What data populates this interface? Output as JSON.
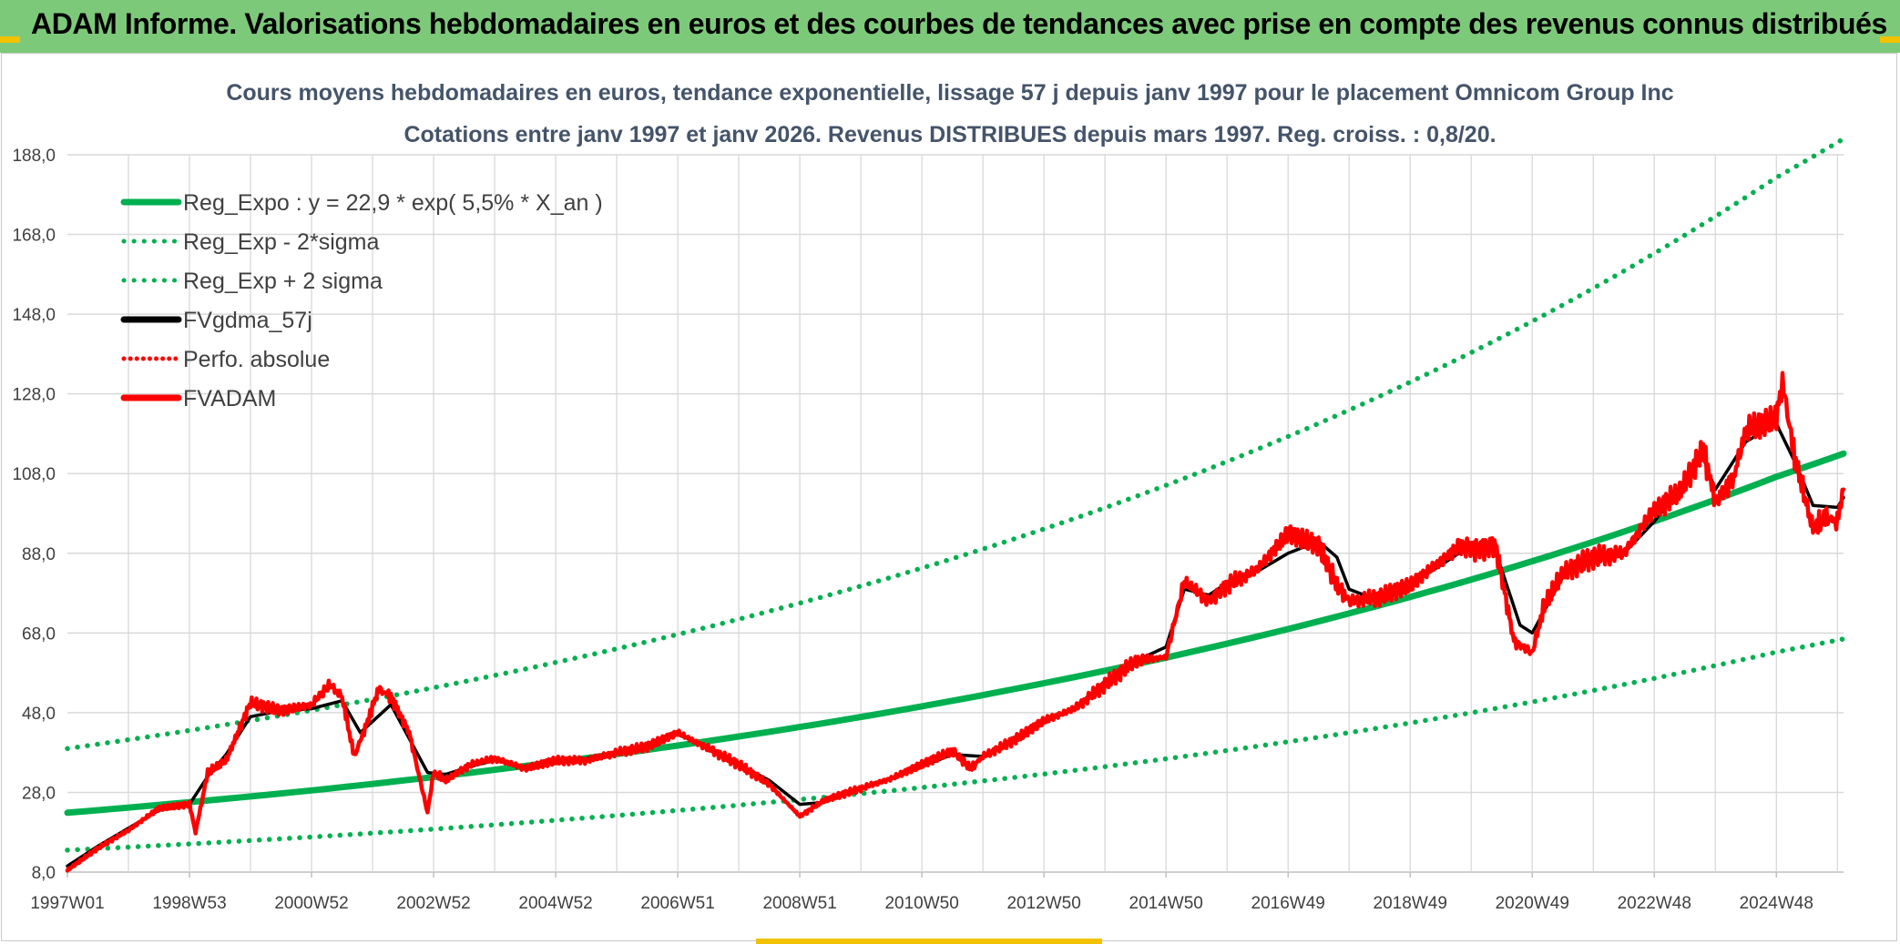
{
  "banner": {
    "title": "ADAM Informe. Valorisations hebdomadaires en euros et des courbes de tendances avec prise en compte des revenus connus distribués"
  },
  "colors": {
    "banner_bg": "#7dc97a",
    "accent_yellow": "#f2c200",
    "green": "#00b050",
    "red": "#ff0000",
    "black": "#000000",
    "title_text": "#44546a",
    "grid": "#d9d9d9"
  },
  "chart_data": {
    "type": "line",
    "title": "Cours moyens hebdomadaires en euros, tendance exponentielle, lissage 57 j depuis janv 1997 pour le placement Omnicom Group Inc",
    "subtitle": "Cotations entre janv 1997 et janv 2026. Revenus DISTRIBUES depuis mars 1997. Reg. croiss. : 0,8/20.",
    "xlabel": "",
    "ylabel": "",
    "x_range": [
      1997.0,
      2026.1
    ],
    "ylim": [
      8.0,
      188.0
    ],
    "y_ticks": [
      "8,0",
      "28,0",
      "48,0",
      "68,0",
      "88,0",
      "108,0",
      "128,0",
      "148,0",
      "168,0",
      "188,0"
    ],
    "x_ticks": [
      {
        "label": "1997W01",
        "x": 1997.0
      },
      {
        "label": "1998W53",
        "x": 1999.0
      },
      {
        "label": "2000W52",
        "x": 2001.0
      },
      {
        "label": "2002W52",
        "x": 2003.0
      },
      {
        "label": "2004W52",
        "x": 2005.0
      },
      {
        "label": "2006W51",
        "x": 2007.0
      },
      {
        "label": "2008W51",
        "x": 2009.0
      },
      {
        "label": "2010W50",
        "x": 2011.0
      },
      {
        "label": "2012W50",
        "x": 2013.0
      },
      {
        "label": "2014W50",
        "x": 2015.0
      },
      {
        "label": "2016W49",
        "x": 2017.0
      },
      {
        "label": "2018W49",
        "x": 2019.0
      },
      {
        "label": "2020W49",
        "x": 2021.0
      },
      {
        "label": "2022W48",
        "x": 2023.0
      },
      {
        "label": "2024W48",
        "x": 2025.0
      }
    ],
    "legend": [
      "Reg_Expo : y = 22,9 * exp( 5,5% *  X_an )",
      "Reg_Exp - 2*sigma",
      "Reg_Exp + 2 sigma",
      "FVgdma_57j",
      "Perfo. absolue",
      "FVADAM"
    ],
    "series": [
      {
        "name": "Reg_Expo : y = 22,9 * exp( 5,5% *  X_an )",
        "style": "green-solid",
        "x": [
          1997.0,
          2001.0,
          2005.0,
          2009.0,
          2013.0,
          2017.0,
          2021.0,
          2025.0,
          2026.1
        ],
        "y": [
          22.9,
          28.5,
          35.6,
          44.4,
          55.4,
          69.0,
          86.0,
          107.2,
          113.0
        ]
      },
      {
        "name": "Reg_Exp - 2*sigma",
        "style": "green-dotted",
        "x": [
          1997.0,
          2001.0,
          2005.0,
          2009.0,
          2013.0,
          2017.0,
          2021.0,
          2025.0,
          2026.1
        ],
        "y": [
          13.5,
          16.8,
          21.0,
          26.2,
          32.6,
          40.7,
          50.7,
          63.2,
          66.5
        ]
      },
      {
        "name": "Reg_Exp + 2 sigma",
        "style": "green-dotted",
        "x": [
          1997.0,
          2001.0,
          2005.0,
          2009.0,
          2013.0,
          2017.0,
          2021.0,
          2025.0,
          2026.1
        ],
        "y": [
          39.0,
          48.6,
          60.6,
          75.5,
          94.1,
          117.3,
          146.2,
          182.3,
          192.0
        ]
      },
      {
        "name": "FVgdma_57j",
        "style": "black-solid",
        "x": [
          1997.0,
          1997.5,
          1998.0,
          1998.5,
          1999.0,
          1999.3,
          1999.6,
          2000.0,
          2000.5,
          2001.0,
          2001.5,
          2001.8,
          2002.3,
          2002.9,
          2003.2,
          2003.6,
          2004.0,
          2004.5,
          2005.0,
          2005.5,
          2006.0,
          2006.5,
          2007.0,
          2007.5,
          2008.0,
          2008.5,
          2009.0,
          2009.4,
          2010.0,
          2010.5,
          2011.0,
          2011.5,
          2012.0,
          2012.5,
          2013.0,
          2013.5,
          2014.0,
          2014.5,
          2015.0,
          2015.3,
          2015.7,
          2016.0,
          2016.5,
          2017.0,
          2017.5,
          2017.8,
          2018.0,
          2018.5,
          2019.0,
          2019.5,
          2019.8,
          2020.1,
          2020.4,
          2020.8,
          2021.0,
          2021.5,
          2022.0,
          2022.5,
          2023.0,
          2023.4,
          2023.8,
          2024.0,
          2024.5,
          2025.0,
          2025.3,
          2025.6,
          2026.0,
          2026.1
        ],
        "y": [
          9.5,
          14.5,
          19.0,
          23.5,
          25.0,
          32.0,
          37.5,
          47.0,
          48.5,
          49.0,
          51.0,
          43.0,
          50.0,
          33.0,
          32.5,
          34.5,
          36.0,
          34.5,
          36.0,
          36.5,
          38.0,
          40.0,
          42.5,
          39.5,
          35.0,
          31.0,
          25.0,
          25.5,
          29.0,
          31.5,
          34.5,
          37.5,
          37.0,
          41.0,
          45.5,
          49.0,
          56.0,
          61.0,
          64.5,
          79.0,
          77.5,
          80.5,
          83.5,
          88.0,
          91.0,
          87.0,
          79.0,
          76.0,
          80.0,
          85.0,
          88.0,
          89.5,
          88.5,
          70.0,
          68.0,
          82.0,
          87.5,
          88.0,
          96.0,
          104.0,
          112.0,
          104.0,
          116.0,
          120.5,
          111.0,
          100.0,
          99.5,
          102.0
        ]
      },
      {
        "name": "Perfo. absolue",
        "style": "red-dotted",
        "x": [],
        "y": []
      },
      {
        "name": "FVADAM",
        "style": "red-solid",
        "x": [
          1997.0,
          1997.5,
          1998.0,
          1998.5,
          1999.0,
          1999.1,
          1999.3,
          1999.6,
          2000.0,
          2000.5,
          2001.0,
          2001.3,
          2001.5,
          2001.7,
          2001.9,
          2002.1,
          2002.3,
          2002.6,
          2002.9,
          2003.0,
          2003.2,
          2003.6,
          2004.0,
          2004.5,
          2005.0,
          2005.5,
          2006.0,
          2006.5,
          2007.0,
          2007.5,
          2008.0,
          2008.5,
          2009.0,
          2009.4,
          2010.0,
          2010.5,
          2011.0,
          2011.5,
          2011.8,
          2012.0,
          2012.5,
          2013.0,
          2013.5,
          2014.0,
          2014.5,
          2015.0,
          2015.3,
          2015.7,
          2016.0,
          2016.5,
          2017.0,
          2017.5,
          2017.8,
          2018.0,
          2018.5,
          2019.0,
          2019.5,
          2019.8,
          2020.1,
          2020.4,
          2020.7,
          2021.0,
          2021.2,
          2021.5,
          2022.0,
          2022.5,
          2023.0,
          2023.4,
          2023.8,
          2024.0,
          2024.3,
          2024.5,
          2025.0,
          2025.1,
          2025.3,
          2025.6,
          2025.8,
          2026.0,
          2026.1
        ],
        "y": [
          8.5,
          14.0,
          18.5,
          24.0,
          25.0,
          18.0,
          33.0,
          36.0,
          50.5,
          48.5,
          50.0,
          55.0,
          52.0,
          37.0,
          45.0,
          54.0,
          52.0,
          43.0,
          23.0,
          33.0,
          31.0,
          35.0,
          36.5,
          34.0,
          36.0,
          36.0,
          38.0,
          39.5,
          43.0,
          39.0,
          35.0,
          30.0,
          22.0,
          26.0,
          29.0,
          31.5,
          35.0,
          38.5,
          34.0,
          37.0,
          41.0,
          46.0,
          49.0,
          55.0,
          61.0,
          62.0,
          81.0,
          76.0,
          80.0,
          84.0,
          93.0,
          90.0,
          80.0,
          76.0,
          77.0,
          80.0,
          86.0,
          90.0,
          89.0,
          90.0,
          66.0,
          63.0,
          75.0,
          83.0,
          87.0,
          88.0,
          99.0,
          103.0,
          114.0,
          101.0,
          107.0,
          119.0,
          122.0,
          131.0,
          112.0,
          94.0,
          97.0,
          96.0,
          104.0
        ]
      }
    ]
  }
}
